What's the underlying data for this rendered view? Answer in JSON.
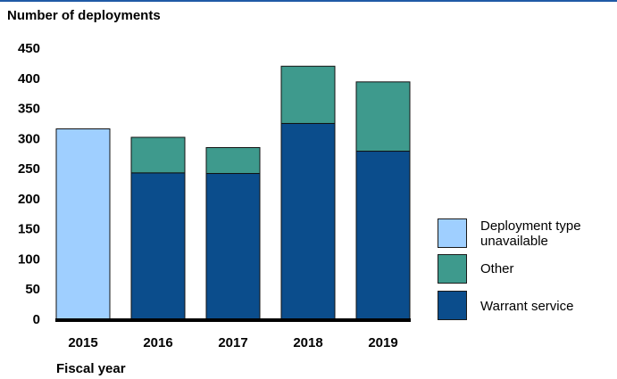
{
  "colors": {
    "top_rule": "#1f5aa6",
    "unavailable": "#9fcfff",
    "other": "#3e9a8d",
    "warrant": "#0b4d8c",
    "baseline": "#000000"
  },
  "chart_data": {
    "type": "bar",
    "stacked": true,
    "ylabel": "Number of deployments",
    "xlabel": "Fiscal year",
    "categories": [
      "2015",
      "2016",
      "2017",
      "2018",
      "2019"
    ],
    "yticks": [
      "0",
      "50",
      "100",
      "150",
      "200",
      "250",
      "300",
      "350",
      "400",
      "450"
    ],
    "ylim": [
      0,
      450
    ],
    "grid": false,
    "legend_position": "right",
    "series": [
      {
        "name": "Warrant service",
        "color": "#0b4d8c",
        "values": [
          0,
          243,
          242,
          325,
          279
        ]
      },
      {
        "name": "Other",
        "color": "#3e9a8d",
        "values": [
          0,
          59,
          43,
          95,
          115
        ]
      },
      {
        "name": "Deployment type unavailable",
        "color": "#9fcfff",
        "values": [
          316,
          0,
          0,
          0,
          0
        ]
      }
    ],
    "legend": [
      {
        "label": "Deployment type unavailable",
        "color": "#9fcfff"
      },
      {
        "label": "Other",
        "color": "#3e9a8d"
      },
      {
        "label": "Warrant service",
        "color": "#0b4d8c"
      }
    ]
  }
}
